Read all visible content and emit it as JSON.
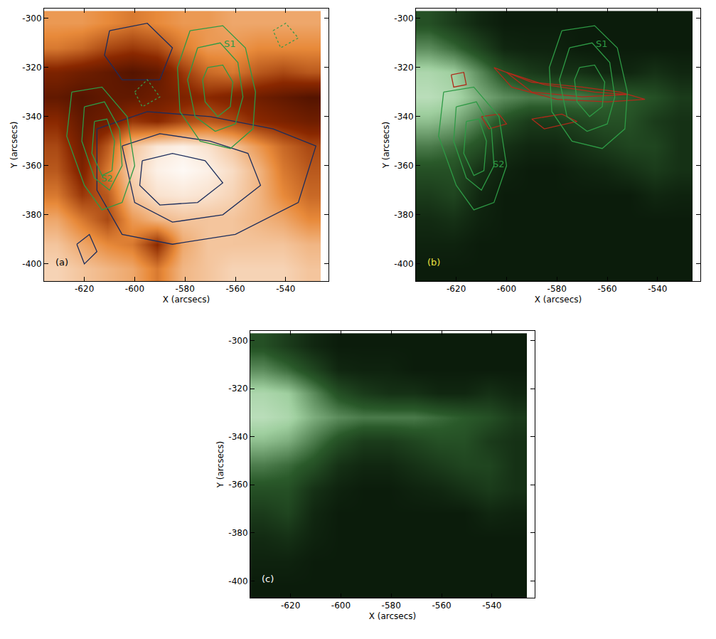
{
  "chart_data": [
    {
      "type": "image",
      "x_label": "X (arcsecs)",
      "y_label": "Y (arcsecs)",
      "xlim": [
        -636,
        -523
      ],
      "ylim": [
        -407,
        -296
      ],
      "xticks": [
        -620,
        -600,
        -580,
        -560,
        -540
      ],
      "yticks": [
        -400,
        -380,
        -360,
        -340,
        -320,
        -300
      ],
      "color": "orange",
      "cells": {
        "x": [
          -631,
          -621,
          -611,
          -601,
          -591,
          -581,
          -571,
          -561,
          -551,
          -541,
          -531
        ],
        "y": [
          -402,
          -392,
          -382,
          -372,
          -362,
          -352,
          -342,
          -332,
          -322,
          -312,
          -302
        ],
        "zlim": [
          0,
          100
        ],
        "z": [
          [
            85,
            80,
            75,
            70,
            55,
            75,
            80,
            85,
            85,
            85,
            80
          ],
          [
            80,
            70,
            60,
            55,
            30,
            70,
            80,
            80,
            80,
            80,
            75
          ],
          [
            70,
            55,
            40,
            65,
            75,
            80,
            80,
            80,
            75,
            70,
            60
          ],
          [
            55,
            35,
            45,
            80,
            90,
            92,
            90,
            85,
            75,
            60,
            50
          ],
          [
            45,
            25,
            55,
            85,
            95,
            98,
            95,
            88,
            75,
            55,
            45
          ],
          [
            40,
            20,
            45,
            80,
            92,
            95,
            90,
            80,
            65,
            50,
            40
          ],
          [
            30,
            15,
            20,
            35,
            30,
            40,
            45,
            40,
            30,
            25,
            20
          ],
          [
            15,
            10,
            15,
            15,
            20,
            25,
            30,
            25,
            20,
            15,
            10
          ],
          [
            25,
            20,
            15,
            10,
            15,
            35,
            50,
            55,
            45,
            40,
            45
          ],
          [
            55,
            50,
            40,
            35,
            40,
            55,
            65,
            65,
            60,
            60,
            60
          ],
          [
            65,
            65,
            60,
            55,
            60,
            65,
            65,
            70,
            70,
            70,
            70
          ]
        ]
      },
      "series": [
        {
          "color": "#1c2d5c",
          "line_style": "solid",
          "x": [
            -615,
            -595,
            -570,
            -545,
            -528,
            -535,
            -560,
            -585,
            -605,
            -615,
            -615,
            null,
            -605,
            -590,
            -570,
            -555,
            -550,
            -565,
            -585,
            -600,
            -605,
            null,
            -597,
            -585,
            -572,
            -565,
            -575,
            -590,
            -598,
            -597,
            null,
            -610,
            -595,
            -585,
            -590,
            -605,
            -612,
            -610,
            null,
            -623,
            -618,
            -615,
            -620,
            -623
          ],
          "y": [
            -345,
            -338,
            -340,
            -345,
            -352,
            -375,
            -388,
            -392,
            -388,
            -370,
            -345,
            null,
            -352,
            -347,
            -350,
            -355,
            -368,
            -380,
            -383,
            -375,
            -352,
            null,
            -358,
            -355,
            -358,
            -367,
            -375,
            -376,
            -368,
            -358,
            null,
            -305,
            -302,
            -312,
            -325,
            -325,
            -315,
            -305,
            null,
            -392,
            -388,
            -395,
            -400,
            -392
          ]
        },
        {
          "color": "#3a9a4a",
          "line_style": "dotted",
          "x": [
            -545,
            -540,
            -535,
            -542,
            -545,
            null,
            -600,
            -595,
            -590,
            -597,
            -600
          ],
          "y": [
            -305,
            -302,
            -308,
            -312,
            -305,
            null,
            -330,
            -325,
            -332,
            -336,
            -330
          ]
        },
        {
          "name": "S1",
          "color": "#2e9a45",
          "line_style": "solid",
          "x": [
            -578,
            -565,
            -556,
            -552,
            -553,
            -562,
            -574,
            -582,
            -583,
            -578,
            null,
            -575,
            -566,
            -559,
            -557,
            -560,
            -568,
            -576,
            -579,
            -575,
            null,
            -571,
            -565,
            -561,
            -562,
            -567,
            -572,
            -573,
            -571
          ],
          "y": [
            -305,
            -303,
            -312,
            -330,
            -345,
            -353,
            -350,
            -338,
            -320,
            -305,
            null,
            -312,
            -310,
            -318,
            -332,
            -343,
            -346,
            -340,
            -325,
            -312,
            null,
            -320,
            -319,
            -326,
            -336,
            -340,
            -334,
            -325,
            -320
          ]
        },
        {
          "name": "S2",
          "color": "#2e9a45",
          "line_style": "solid",
          "x": [
            -625,
            -613,
            -603,
            -600,
            -605,
            -613,
            -620,
            -627,
            -625,
            null,
            -620,
            -612,
            -606,
            -605,
            -610,
            -616,
            -621,
            -620,
            null,
            -616,
            -611,
            -608,
            -609,
            -613,
            -617,
            -616
          ],
          "y": [
            -330,
            -328,
            -340,
            -360,
            -375,
            -378,
            -368,
            -348,
            -330,
            null,
            -336,
            -334,
            -345,
            -360,
            -370,
            -365,
            -350,
            -336,
            null,
            -342,
            -341,
            -350,
            -362,
            -364,
            -355,
            -342
          ]
        }
      ],
      "annotations": [
        {
          "text": "S1",
          "x": -565,
          "y": -313,
          "color": "#2e9a45"
        },
        {
          "text": "S2",
          "x": -614,
          "y": -368,
          "color": "#2e9a45"
        },
        {
          "text": "(a)",
          "x": -632,
          "y": -402,
          "color": "#000000"
        }
      ]
    },
    {
      "type": "image",
      "x_label": "X (arcsecs)",
      "y_label": "Y (arcsecs)",
      "xlim": [
        -636,
        -523
      ],
      "ylim": [
        -407,
        -296
      ],
      "xticks": [
        -620,
        -600,
        -580,
        -560,
        -540
      ],
      "yticks": [
        -400,
        -380,
        -360,
        -340,
        -320,
        -300
      ],
      "color": "green",
      "cells": {
        "x": [
          -631,
          -621,
          -611,
          -601,
          -591,
          -581,
          -571,
          -561,
          -551,
          -541,
          -531
        ],
        "y": [
          -402,
          -392,
          -382,
          -372,
          -362,
          -352,
          -342,
          -332,
          -322,
          -312,
          -302
        ],
        "zlim": [
          0,
          100
        ],
        "z": [
          [
            5,
            5,
            5,
            5,
            5,
            5,
            5,
            5,
            5,
            5,
            5
          ],
          [
            8,
            8,
            5,
            5,
            5,
            5,
            5,
            5,
            5,
            5,
            5
          ],
          [
            12,
            15,
            8,
            5,
            5,
            5,
            5,
            5,
            5,
            5,
            5
          ],
          [
            20,
            25,
            10,
            5,
            5,
            5,
            5,
            5,
            5,
            10,
            8
          ],
          [
            30,
            30,
            15,
            8,
            5,
            5,
            8,
            10,
            15,
            20,
            15
          ],
          [
            45,
            40,
            30,
            15,
            10,
            10,
            15,
            20,
            25,
            25,
            15
          ],
          [
            65,
            60,
            45,
            30,
            20,
            20,
            25,
            30,
            30,
            20,
            15
          ],
          [
            80,
            75,
            60,
            50,
            45,
            45,
            45,
            40,
            35,
            30,
            20
          ],
          [
            75,
            70,
            50,
            30,
            20,
            15,
            15,
            10,
            10,
            15,
            10
          ],
          [
            50,
            40,
            25,
            10,
            8,
            8,
            5,
            5,
            5,
            5,
            5
          ],
          [
            30,
            20,
            10,
            5,
            5,
            5,
            5,
            5,
            5,
            5,
            5
          ]
        ]
      },
      "series": [
        {
          "color": "#b02a1a",
          "line_style": "solid",
          "x": [
            -605,
            -590,
            -570,
            -555,
            -545,
            -560,
            -580,
            -598,
            -605,
            null,
            -600,
            -585,
            -565,
            -552,
            -570,
            -590,
            -600,
            null,
            -622,
            -617,
            -616,
            -621,
            -622,
            null,
            -610,
            -603,
            -600,
            -607,
            -610,
            null,
            -590,
            -578,
            -572,
            -585,
            -590
          ],
          "y": [
            -320,
            -326,
            -328,
            -330,
            -333,
            -334,
            -333,
            -328,
            -320,
            null,
            -322,
            -327,
            -330,
            -331,
            -332,
            -330,
            -322,
            null,
            -323,
            -322,
            -327,
            -328,
            -323,
            null,
            -340,
            -339,
            -343,
            -345,
            -340,
            null,
            -341,
            -339,
            -342,
            -345,
            -341
          ]
        },
        {
          "name": "S1",
          "color": "#2e9a45",
          "line_style": "solid",
          "x": [
            -578,
            -565,
            -556,
            -552,
            -553,
            -562,
            -574,
            -582,
            -583,
            -578,
            null,
            -575,
            -566,
            -559,
            -557,
            -560,
            -568,
            -576,
            -579,
            -575,
            null,
            -571,
            -565,
            -561,
            -562,
            -567,
            -572,
            -573,
            -571
          ],
          "y": [
            -305,
            -303,
            -312,
            -330,
            -345,
            -353,
            -350,
            -338,
            -320,
            -305,
            null,
            -312,
            -310,
            -318,
            -332,
            -343,
            -346,
            -340,
            -325,
            -312,
            null,
            -320,
            -319,
            -326,
            -336,
            -340,
            -334,
            -325,
            -320
          ]
        },
        {
          "name": "S2",
          "color": "#2e9a45",
          "line_style": "solid",
          "x": [
            -625,
            -613,
            -603,
            -600,
            -605,
            -613,
            -620,
            -627,
            -625,
            null,
            -620,
            -612,
            -606,
            -605,
            -610,
            -616,
            -621,
            -620,
            null,
            -616,
            -611,
            -608,
            -609,
            -613,
            -617,
            -616
          ],
          "y": [
            -330,
            -328,
            -340,
            -360,
            -375,
            -378,
            -368,
            -348,
            -330,
            null,
            -336,
            -334,
            -345,
            -360,
            -370,
            -365,
            -350,
            -336,
            null,
            -342,
            -341,
            -350,
            -362,
            -364,
            -355,
            -342
          ]
        }
      ],
      "annotations": [
        {
          "text": "S1",
          "x": -565,
          "y": -313,
          "color": "#2e9a45"
        },
        {
          "text": "S2",
          "x": -606,
          "y": -362,
          "color": "#2e9a45"
        },
        {
          "text": "(b)",
          "x": -632,
          "y": -402,
          "color": "#e8e040"
        }
      ]
    },
    {
      "type": "image",
      "x_label": "X (arcsecs)",
      "y_label": "Y (arcsecs)",
      "xlim": [
        -636,
        -523
      ],
      "ylim": [
        -407,
        -296
      ],
      "xticks": [
        -620,
        -600,
        -580,
        -560,
        -540
      ],
      "yticks": [
        -400,
        -380,
        -360,
        -340,
        -320,
        -300
      ],
      "color": "green",
      "cells": {
        "x": [
          -631,
          -621,
          -611,
          -601,
          -591,
          -581,
          -571,
          -561,
          -551,
          -541,
          -531
        ],
        "y": [
          -402,
          -392,
          -382,
          -372,
          -362,
          -352,
          -342,
          -332,
          -322,
          -312,
          -302
        ],
        "zlim": [
          0,
          100
        ],
        "z": [
          [
            5,
            5,
            5,
            5,
            5,
            5,
            5,
            5,
            5,
            5,
            5
          ],
          [
            8,
            8,
            5,
            5,
            5,
            5,
            5,
            5,
            5,
            5,
            5
          ],
          [
            12,
            15,
            8,
            5,
            5,
            5,
            5,
            5,
            5,
            5,
            5
          ],
          [
            20,
            25,
            10,
            5,
            5,
            5,
            5,
            5,
            5,
            10,
            8
          ],
          [
            30,
            30,
            15,
            8,
            5,
            5,
            8,
            10,
            15,
            20,
            15
          ],
          [
            45,
            40,
            30,
            15,
            10,
            10,
            15,
            20,
            25,
            25,
            15
          ],
          [
            65,
            60,
            45,
            30,
            20,
            20,
            25,
            30,
            30,
            20,
            15
          ],
          [
            80,
            75,
            60,
            50,
            45,
            45,
            45,
            40,
            35,
            30,
            20
          ],
          [
            75,
            70,
            50,
            30,
            20,
            15,
            15,
            10,
            10,
            15,
            10
          ],
          [
            50,
            40,
            25,
            10,
            8,
            8,
            5,
            5,
            5,
            5,
            5
          ],
          [
            30,
            20,
            10,
            5,
            5,
            5,
            5,
            5,
            5,
            5,
            5
          ]
        ]
      },
      "series": [],
      "annotations": [
        {
          "text": "(c)",
          "x": -632,
          "y": -402,
          "color": "#ffffff"
        }
      ]
    }
  ]
}
